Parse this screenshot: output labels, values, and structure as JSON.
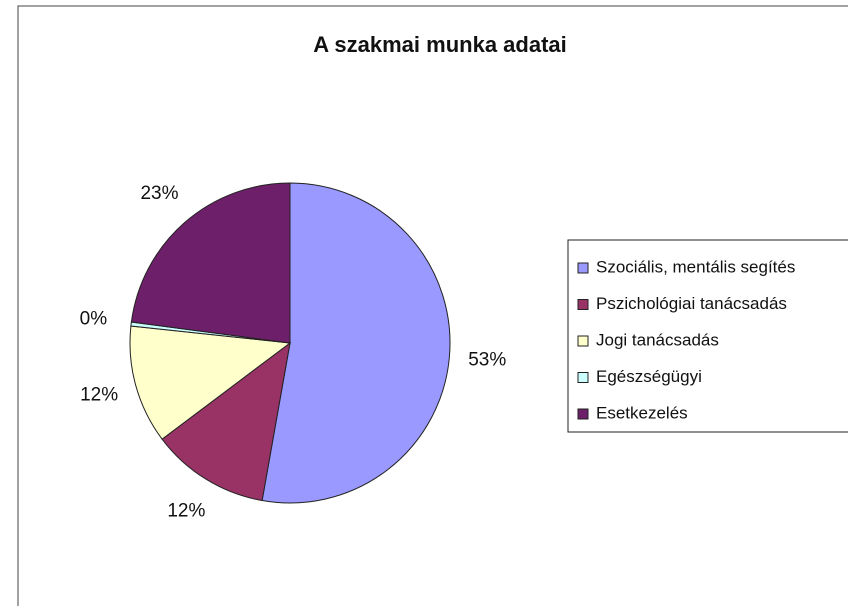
{
  "chart_data": {
    "type": "pie",
    "title": "A szakmai munka adatai",
    "categories": [
      "Szociális, mentális segítés",
      "Pszichológiai tanácsadás",
      "Jogi tanácsadás",
      "Egészségügyi",
      "Esetkezelés"
    ],
    "values": [
      53,
      12,
      12,
      0.4,
      23
    ],
    "value_labels": [
      "53%",
      "12%",
      "12%",
      "0%",
      "23%"
    ],
    "colors": [
      "#9999ff",
      "#993366",
      "#ffffcc",
      "#ccffff",
      "#6e1f6a"
    ],
    "legend": "right"
  }
}
